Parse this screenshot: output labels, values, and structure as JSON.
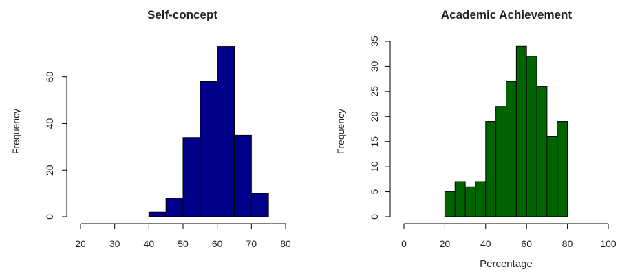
{
  "chart_data": [
    {
      "type": "bar",
      "title": "Self-concept",
      "xlabel": "",
      "ylabel": "Frequency",
      "bin_edges": [
        40,
        45,
        50,
        55,
        60,
        65,
        70,
        75
      ],
      "values": [
        2,
        8,
        34,
        58,
        73,
        35,
        10
      ],
      "xlim": [
        20,
        80
      ],
      "xticks": [
        "20",
        "30",
        "40",
        "50",
        "60",
        "70",
        "80"
      ],
      "xtick_values": [
        20,
        30,
        40,
        50,
        60,
        70,
        80
      ],
      "ylim": [
        0,
        73
      ],
      "yticks": [
        "0",
        "20",
        "40",
        "60"
      ],
      "ytick_values": [
        0,
        20,
        40,
        60
      ],
      "color": "#00008B",
      "grid": false
    },
    {
      "type": "bar",
      "title": "Academic Achievement",
      "xlabel": "Percentage",
      "ylabel": "Frequency",
      "bin_edges": [
        20,
        25,
        30,
        35,
        40,
        45,
        50,
        55,
        60,
        65,
        70,
        75,
        80
      ],
      "values": [
        5,
        7,
        6,
        7,
        19,
        22,
        27,
        34,
        32,
        26,
        16,
        19
      ],
      "xlim": [
        0,
        100
      ],
      "xticks": [
        "0",
        "20",
        "40",
        "60",
        "80",
        "100"
      ],
      "xtick_values": [
        0,
        20,
        40,
        60,
        80,
        100
      ],
      "ylim": [
        0,
        35
      ],
      "yticks": [
        "0",
        "5",
        "10",
        "15",
        "20",
        "25",
        "30",
        "35"
      ],
      "ytick_values": [
        0,
        5,
        10,
        15,
        20,
        25,
        30,
        35
      ],
      "color": "#006400",
      "grid": false
    }
  ]
}
